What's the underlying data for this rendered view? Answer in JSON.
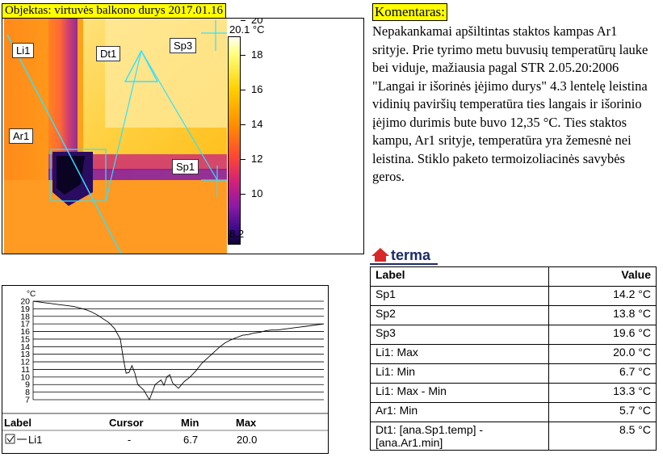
{
  "header": {
    "title": "Objektas: virtuvės balkono durys  2017.01.16"
  },
  "colorbar": {
    "max_label": "20.1 °C",
    "min_label": "8.2",
    "ticks": [
      {
        "value": 20,
        "label": "20"
      },
      {
        "value": 18,
        "label": "18"
      },
      {
        "value": 16,
        "label": "16"
      },
      {
        "value": 14,
        "label": "14"
      },
      {
        "value": 12,
        "label": "12"
      },
      {
        "value": 10,
        "label": "10"
      }
    ]
  },
  "markers": {
    "li1": "Li1",
    "dt1": "Dt1",
    "sp3": "Sp3",
    "ar1": "Ar1",
    "sp1": "Sp1"
  },
  "comment": {
    "title": "Komentaras:",
    "body": "Nepakankamai apšiltintas staktos kampas Ar1 srityje. Prie tyrimo metu buvusių temperatūrų lauke bei viduje, mažiausia pagal STR 2.05.20:2006 \"Langai ir išorinės įėjimo durys\" 4.3 lentelę leistina vidinių paviršių temperatūra ties langais ir išorinio įėjimo durimis bute buvo 12,35 °C. Ties staktos kampu, Ar1 srityje, temperatūra yra žemesnė nei leistina. Stiklo paketo termoizoliacinės savybės geros."
  },
  "logo": {
    "text": "terma"
  },
  "values_table": {
    "headers": {
      "label": "Label",
      "value": "Value"
    },
    "rows": [
      {
        "label": "Sp1",
        "value": "14.2 °C"
      },
      {
        "label": "Sp2",
        "value": "13.8 °C"
      },
      {
        "label": "Sp3",
        "value": "19.6 °C"
      },
      {
        "label": "Li1: Max",
        "value": "20.0 °C"
      },
      {
        "label": "Li1: Min",
        "value": "6.7 °C"
      },
      {
        "label": "Li1: Max - Min",
        "value": "13.3 °C"
      },
      {
        "label": "Ar1: Min",
        "value": "5.7 °C"
      },
      {
        "label": "Dt1: [ana.Sp1.temp] - [ana.Ar1.min]",
        "value": "8.5 °C"
      }
    ]
  },
  "chart_data": {
    "type": "line",
    "ylabel": "°C",
    "ylim": [
      7,
      20
    ],
    "ytick_labels": [
      "20",
      "19",
      "18",
      "17",
      "16",
      "15",
      "14",
      "13",
      "12",
      "11",
      "10",
      "9",
      "8",
      "7"
    ],
    "grid": true,
    "series": [
      {
        "name": "Li1",
        "color": "#000000",
        "x": [
          0,
          2,
          4,
          6,
          8,
          10,
          12,
          14,
          16,
          18,
          20,
          22,
          24,
          26,
          28,
          30,
          31,
          32,
          33,
          34,
          35,
          36,
          38,
          40,
          42,
          44,
          45,
          46,
          47,
          48,
          50,
          52,
          54,
          56,
          58,
          60,
          62,
          64,
          66,
          68,
          70,
          72,
          74,
          76,
          78,
          80,
          82,
          84,
          86,
          88,
          90,
          92,
          94,
          96,
          98,
          100
        ],
        "values": [
          20,
          19.9,
          19.8,
          19.7,
          19.6,
          19.5,
          19.4,
          19.3,
          19.1,
          18.9,
          18.6,
          18.2,
          17.7,
          17.2,
          16.4,
          15,
          12.5,
          10.5,
          10.6,
          11.5,
          10.5,
          9,
          8.3,
          7.0,
          9.0,
          9.6,
          8.9,
          10,
          10.3,
          9.2,
          8.5,
          9.4,
          10.0,
          10.8,
          11.8,
          12.5,
          13.2,
          13.9,
          14.5,
          14.9,
          15.2,
          15.5,
          15.6,
          15.8,
          15.9,
          16.1,
          16.2,
          16.2,
          16.3,
          16.4,
          16.5,
          16.6,
          16.7,
          16.8,
          16.9,
          17.0
        ]
      }
    ],
    "legend_table": {
      "headers": {
        "label": "Label",
        "cursor": "Cursor",
        "min": "Min",
        "max": "Max"
      },
      "rows": [
        {
          "label": "Li1",
          "cursor": "-",
          "min": "6.7",
          "max": "20.0"
        }
      ]
    }
  }
}
